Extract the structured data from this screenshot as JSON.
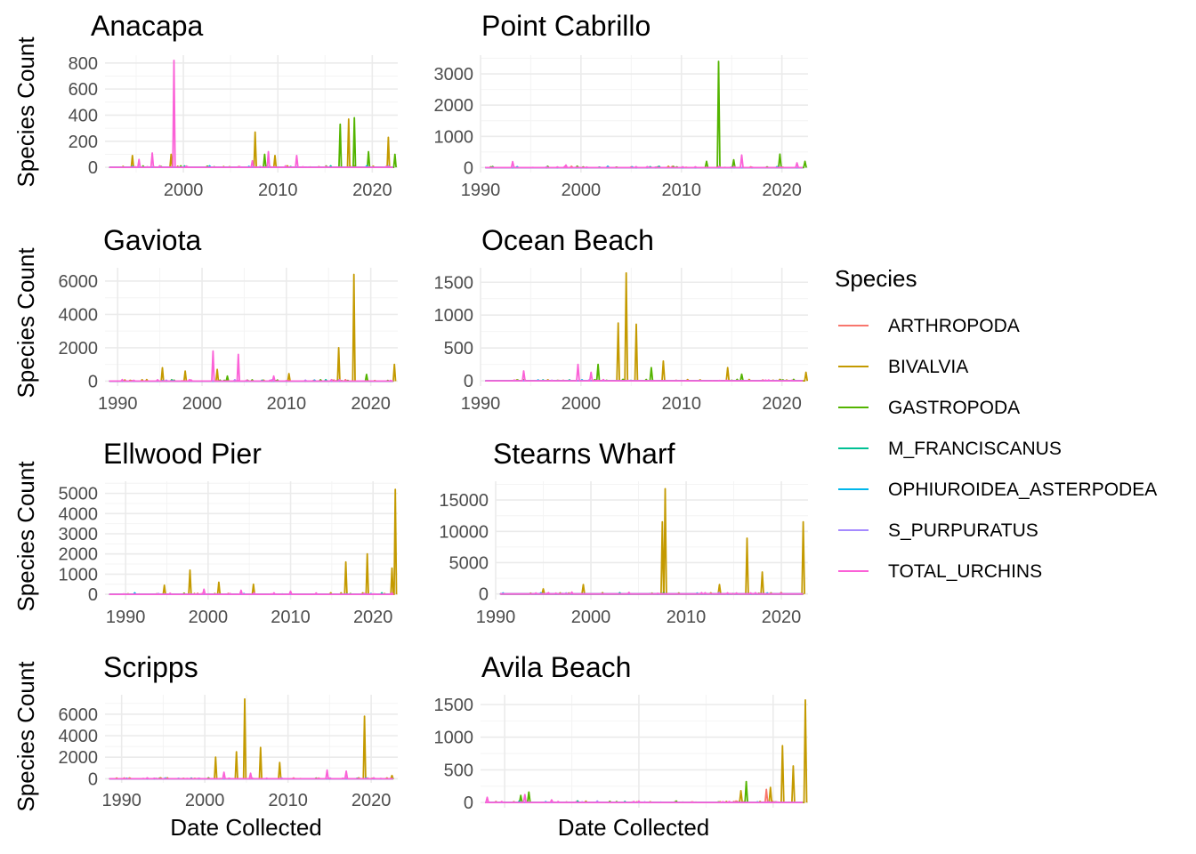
{
  "chart_data": {
    "type": "line",
    "xlabel": "Date Collected",
    "ylabel": "Species Count",
    "legend": {
      "title": "Species",
      "placement": "right",
      "entries": [
        {
          "name": "ARTHROPODA",
          "color": "#F8766D"
        },
        {
          "name": "BIVALVIA",
          "color": "#C49A00"
        },
        {
          "name": "GASTROPODA",
          "color": "#53B400"
        },
        {
          "name": "M_FRANCISCANUS",
          "color": "#00C094"
        },
        {
          "name": "OPHIUROIDEA_ASTERPODEA",
          "color": "#00B6EB"
        },
        {
          "name": "S_PURPURATUS",
          "color": "#A58AFF"
        },
        {
          "name": "TOTAL_URCHINS",
          "color": "#FB61D7"
        }
      ]
    },
    "panels": [
      {
        "title": "Anacapa",
        "xlim": [
          1991.7,
          2022.7
        ],
        "xticks": [
          2000,
          2010,
          2020
        ],
        "ylim": [
          -40,
          860
        ],
        "yticks": [
          0,
          200,
          400,
          600,
          800
        ],
        "peaks": [
          {
            "series": "TOTAL_URCHINS",
            "points": [
              [
                1995.3,
                60
              ],
              [
                1996.7,
                110
              ],
              [
                1999.0,
                820
              ],
              [
                2007.3,
                50
              ],
              [
                2009.0,
                120
              ],
              [
                2012.0,
                90
              ]
            ]
          },
          {
            "series": "BIVALVIA",
            "points": [
              [
                1994.6,
                90
              ],
              [
                1998.7,
                100
              ],
              [
                2007.6,
                270
              ],
              [
                2009.7,
                90
              ],
              [
                2017.5,
                370
              ],
              [
                2021.7,
                230
              ]
            ]
          },
          {
            "series": "GASTROPODA",
            "points": [
              [
                2008.6,
                100
              ],
              [
                2016.6,
                330
              ],
              [
                2018.1,
                380
              ],
              [
                2019.6,
                120
              ],
              [
                2022.4,
                100
              ]
            ]
          }
        ]
      },
      {
        "title": "Point Cabrillo",
        "xlim": [
          1990.0,
          2022.6
        ],
        "xticks": [
          1990,
          2000,
          2010,
          2020
        ],
        "ylim": [
          -160,
          3600
        ],
        "yticks": [
          0,
          1000,
          2000,
          3000
        ],
        "peaks": [
          {
            "series": "TOTAL_URCHINS",
            "points": [
              [
                1993.2,
                190
              ],
              [
                1998.5,
                80
              ],
              [
                2016.0,
                400
              ],
              [
                2021.5,
                150
              ]
            ]
          },
          {
            "series": "GASTROPODA",
            "points": [
              [
                2012.5,
                200
              ],
              [
                2013.7,
                3400
              ],
              [
                2015.2,
                250
              ],
              [
                2019.8,
                430
              ],
              [
                2022.3,
                200
              ]
            ]
          }
        ]
      },
      {
        "title": "Gaviota",
        "xlim": [
          1988.5,
          2023.2
        ],
        "xticks": [
          1990,
          2000,
          2010,
          2020
        ],
        "ylim": [
          -300,
          6800
        ],
        "yticks": [
          0,
          2000,
          4000,
          6000
        ],
        "peaks": [
          {
            "series": "BIVALVIA",
            "points": [
              [
                1995.3,
                800
              ],
              [
                1998.0,
                600
              ],
              [
                2001.8,
                700
              ],
              [
                2010.3,
                450
              ],
              [
                2016.2,
                2000
              ],
              [
                2018.0,
                6400
              ],
              [
                2022.8,
                1000
              ]
            ]
          },
          {
            "series": "TOTAL_URCHINS",
            "points": [
              [
                2001.3,
                1800
              ],
              [
                2004.3,
                1600
              ],
              [
                2008.5,
                300
              ]
            ]
          },
          {
            "series": "GASTROPODA",
            "points": [
              [
                2003.0,
                300
              ],
              [
                2019.5,
                400
              ]
            ]
          }
        ]
      },
      {
        "title": "Ocean Beach",
        "xlim": [
          1990.0,
          2022.6
        ],
        "xticks": [
          1990,
          2000,
          2010,
          2020
        ],
        "ylim": [
          -80,
          1720
        ],
        "yticks": [
          0,
          500,
          1000,
          1500
        ],
        "peaks": [
          {
            "series": "TOTAL_URCHINS",
            "points": [
              [
                1994.3,
                150
              ],
              [
                1999.7,
                250
              ],
              [
                2001.0,
                130
              ]
            ]
          },
          {
            "series": "BIVALVIA",
            "points": [
              [
                2003.7,
                880
              ],
              [
                2004.5,
                1640
              ],
              [
                2005.5,
                860
              ],
              [
                2008.2,
                300
              ],
              [
                2014.6,
                200
              ],
              [
                2022.4,
                130
              ]
            ]
          },
          {
            "series": "GASTROPODA",
            "points": [
              [
                2001.7,
                250
              ],
              [
                2007.0,
                200
              ],
              [
                2016.0,
                100
              ]
            ]
          }
        ]
      },
      {
        "title": "Ellwood Pier",
        "xlim": [
          1987.5,
          2023.0
        ],
        "xticks": [
          1990,
          2000,
          2010,
          2020
        ],
        "ylim": [
          -260,
          5600
        ],
        "yticks": [
          0,
          1000,
          2000,
          3000,
          4000,
          5000
        ],
        "peaks": [
          {
            "series": "BIVALVIA",
            "points": [
              [
                1994.7,
                450
              ],
              [
                1997.8,
                1200
              ],
              [
                2001.3,
                600
              ],
              [
                2005.5,
                500
              ],
              [
                2016.7,
                1600
              ],
              [
                2019.3,
                2000
              ],
              [
                2022.3,
                1300
              ],
              [
                2022.7,
                5200
              ]
            ]
          },
          {
            "series": "TOTAL_URCHINS",
            "points": [
              [
                1999.5,
                250
              ],
              [
                2004.0,
                200
              ],
              [
                2010.0,
                150
              ]
            ]
          }
        ]
      },
      {
        "title": "Stearns Wharf",
        "xlim": [
          1990.0,
          2022.8
        ],
        "xticks": [
          1990,
          2000,
          2010,
          2020
        ],
        "ylim": [
          -900,
          18000
        ],
        "yticks": [
          0,
          5000,
          10000,
          15000
        ],
        "peaks": [
          {
            "series": "BIVALVIA",
            "points": [
              [
                1995.0,
                800
              ],
              [
                1999.2,
                1500
              ],
              [
                2007.5,
                11500
              ],
              [
                2007.8,
                16800
              ],
              [
                2013.5,
                1500
              ],
              [
                2016.4,
                8900
              ],
              [
                2018.0,
                3500
              ],
              [
                2022.3,
                11500
              ]
            ]
          },
          {
            "series": "TOTAL_URCHINS",
            "points": [
              [
                1998.0,
                300
              ],
              [
                2004.0,
                250
              ],
              [
                2012.0,
                200
              ]
            ]
          }
        ]
      },
      {
        "title": "Scripps",
        "xlim": [
          1988.0,
          2023.2
        ],
        "xticks": [
          1990,
          2000,
          2010,
          2020
        ],
        "ylim": [
          -380,
          7800
        ],
        "yticks": [
          0,
          2000,
          4000,
          6000
        ],
        "peaks": [
          {
            "series": "BIVALVIA",
            "points": [
              [
                2001.3,
                2000
              ],
              [
                2003.8,
                2500
              ],
              [
                2004.8,
                7400
              ],
              [
                2006.7,
                2900
              ],
              [
                2009.0,
                1500
              ],
              [
                2019.2,
                5800
              ],
              [
                2022.5,
                300
              ]
            ]
          },
          {
            "series": "TOTAL_URCHINS",
            "points": [
              [
                2002.3,
                600
              ],
              [
                2005.5,
                500
              ],
              [
                2014.7,
                800
              ],
              [
                2017.0,
                700
              ]
            ]
          }
        ]
      },
      {
        "title": "Avila Beach",
        "xlim": [
          1998.2,
          2022.6
        ],
        "xticks": [],
        "ylim": [
          -80,
          1650
        ],
        "yticks": [
          0,
          500,
          1000,
          1500
        ],
        "peaks": [
          {
            "series": "TOTAL_URCHINS",
            "points": [
              [
                1998.7,
                80
              ],
              [
                2001.5,
                120
              ],
              [
                2003.5,
                40
              ]
            ]
          },
          {
            "series": "GASTROPODA",
            "points": [
              [
                2001.2,
                110
              ],
              [
                2001.8,
                160
              ],
              [
                2018.0,
                320
              ]
            ]
          },
          {
            "series": "BIVALVIA",
            "points": [
              [
                2017.6,
                180
              ],
              [
                2019.8,
                230
              ],
              [
                2020.7,
                870
              ],
              [
                2021.5,
                560
              ],
              [
                2022.4,
                1570
              ]
            ]
          },
          {
            "series": "ARTHROPODA",
            "points": [
              [
                2019.5,
                200
              ]
            ]
          }
        ]
      }
    ]
  }
}
